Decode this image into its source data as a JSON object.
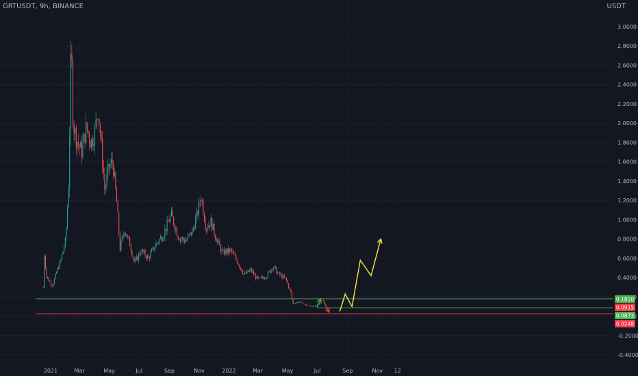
{
  "header": {
    "symbol": "GRTUSDT, 9h, BINANCE",
    "currency": "USDT"
  },
  "colors": {
    "background": "#131722",
    "up": "#26a69a",
    "down": "#ef5350",
    "support_green": "#4caf50",
    "support_red": "#f23645",
    "projection": "#ffeb3b",
    "axis_text": "#b2b5be"
  },
  "chart_data": {
    "type": "candlestick",
    "y_axis": {
      "ticks": [
        "3.0000",
        "2.8000",
        "2.6000",
        "2.4000",
        "2.2000",
        "2.0000",
        "1.8000",
        "1.6000",
        "1.4000",
        "1.2000",
        "1.0000",
        "0.8000",
        "0.6000",
        "0.4000",
        "0.2000",
        "0.0000",
        "-0.2000",
        "-0.4000"
      ],
      "range": [
        -0.4,
        3.0
      ]
    },
    "x_axis": {
      "ticks": [
        "2021",
        "Mar",
        "May",
        "Jul",
        "Sep",
        "Nov",
        "2022",
        "Mar",
        "May",
        "Jul",
        "Sep",
        "Nov",
        "12"
      ]
    },
    "price_path": [
      [
        "2020-12-17",
        0.3
      ],
      [
        "2020-12-18",
        0.7
      ],
      [
        "2020-12-24",
        0.4
      ],
      [
        "2021-01-05",
        0.32
      ],
      [
        "2021-01-12",
        0.44
      ],
      [
        "2021-01-22",
        0.58
      ],
      [
        "2021-02-01",
        0.8
      ],
      [
        "2021-02-07",
        1.4
      ],
      [
        "2021-02-12",
        2.86
      ],
      [
        "2021-02-16",
        2.0
      ],
      [
        "2021-02-22",
        1.85
      ],
      [
        "2021-03-05",
        1.7
      ],
      [
        "2021-03-15",
        1.95
      ],
      [
        "2021-03-25",
        1.8
      ],
      [
        "2021-04-01",
        1.9
      ],
      [
        "2021-04-08",
        2.15
      ],
      [
        "2021-04-15",
        1.75
      ],
      [
        "2021-04-22",
        1.3
      ],
      [
        "2021-04-30",
        1.55
      ],
      [
        "2021-05-08",
        1.6
      ],
      [
        "2021-05-16",
        1.2
      ],
      [
        "2021-05-23",
        0.7
      ],
      [
        "2021-06-01",
        0.9
      ],
      [
        "2021-06-12",
        0.75
      ],
      [
        "2021-06-22",
        0.55
      ],
      [
        "2021-07-05",
        0.68
      ],
      [
        "2021-07-20",
        0.6
      ],
      [
        "2021-08-05",
        0.75
      ],
      [
        "2021-08-20",
        0.85
      ],
      [
        "2021-09-05",
        1.05
      ],
      [
        "2021-09-20",
        0.82
      ],
      [
        "2021-10-05",
        0.78
      ],
      [
        "2021-10-18",
        0.88
      ],
      [
        "2021-10-28",
        1.05
      ],
      [
        "2021-11-05",
        1.25
      ],
      [
        "2021-11-15",
        0.92
      ],
      [
        "2021-11-25",
        0.98
      ],
      [
        "2021-12-05",
        0.82
      ],
      [
        "2021-12-18",
        0.66
      ],
      [
        "2022-01-05",
        0.68
      ],
      [
        "2022-01-20",
        0.55
      ],
      [
        "2022-02-01",
        0.43
      ],
      [
        "2022-02-15",
        0.48
      ],
      [
        "2022-03-01",
        0.38
      ],
      [
        "2022-03-20",
        0.42
      ],
      [
        "2022-04-01",
        0.52
      ],
      [
        "2022-04-12",
        0.44
      ],
      [
        "2022-04-28",
        0.38
      ],
      [
        "2022-05-08",
        0.24
      ],
      [
        "2022-05-12",
        0.13
      ],
      [
        "2022-05-25",
        0.15
      ],
      [
        "2022-06-10",
        0.11
      ],
      [
        "2022-06-25",
        0.1
      ],
      [
        "2022-07-06",
        0.13
      ]
    ],
    "price_labels": [
      {
        "text": "0.1810",
        "value": 0.181,
        "color": "#4caf50"
      },
      {
        "text": "0.0915",
        "value": 0.0915,
        "color": "#f23645"
      },
      {
        "text": "0.0873",
        "value": 0.0873,
        "color": "#4caf50"
      },
      {
        "text": "0.0248",
        "value": 0.0248,
        "color": "#f23645"
      }
    ],
    "horizontal_lines": [
      {
        "value": 0.181,
        "color": "#4caf50",
        "start": "2020-12-01"
      },
      {
        "value": 0.0873,
        "color": "#4caf50",
        "start": "2022-07-01"
      },
      {
        "value": 0.0248,
        "color": "#f23645",
        "start": "2020-12-01"
      }
    ],
    "annotations": [
      {
        "kind": "arrow",
        "color": "#4caf50",
        "from": [
          "2022-06-30",
          0.09
        ],
        "to": [
          "2022-07-08",
          0.18
        ]
      },
      {
        "kind": "arrow",
        "color": "#f23645",
        "from": [
          "2022-07-13",
          0.17
        ],
        "to": [
          "2022-07-25",
          0.04
        ]
      },
      {
        "kind": "polyline_arrow",
        "color": "#ffeb3b",
        "points": [
          [
            "2022-08-16",
            0.05
          ],
          [
            "2022-08-27",
            0.23
          ],
          [
            "2022-09-10",
            0.1
          ],
          [
            "2022-09-27",
            0.58
          ],
          [
            "2022-10-19",
            0.42
          ],
          [
            "2022-11-08",
            0.8
          ]
        ]
      }
    ]
  }
}
